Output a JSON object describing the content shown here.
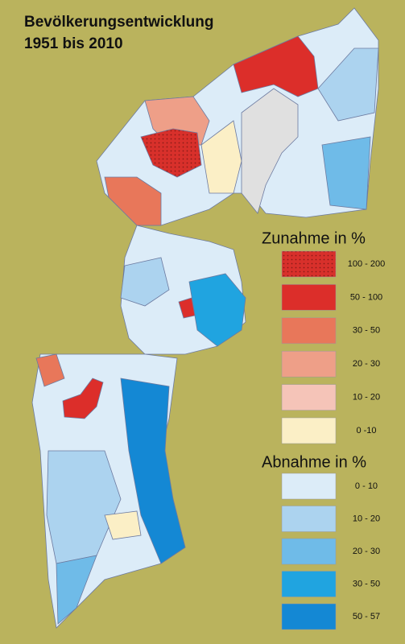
{
  "title": [
    "Bevölkerungsentwicklung",
    "1951 bis 2010"
  ],
  "legend": {
    "increase": {
      "heading": "Zunahme in %",
      "classes": [
        {
          "label": "100 - 200",
          "color": "#d8302b",
          "pattern": "dots"
        },
        {
          "label": "50 - 100",
          "color": "#dc2e2a"
        },
        {
          "label": "30 - 50",
          "color": "#e8775a"
        },
        {
          "label": "20 - 30",
          "color": "#ee9f88"
        },
        {
          "label": "10 - 20",
          "color": "#f5c4b8"
        },
        {
          "label": "0 -10",
          "color": "#fbefc6"
        }
      ]
    },
    "decrease": {
      "heading": "Abnahme in %",
      "classes": [
        {
          "label": "0 - 10",
          "color": "#dcecf8"
        },
        {
          "label": "10 - 20",
          "color": "#acd3ef"
        },
        {
          "label": "20 - 30",
          "color": "#6fbbe8"
        },
        {
          "label": "30 - 50",
          "color": "#20a4e0"
        },
        {
          "label": "50 - 57",
          "color": "#1488d4"
        }
      ]
    }
  }
}
